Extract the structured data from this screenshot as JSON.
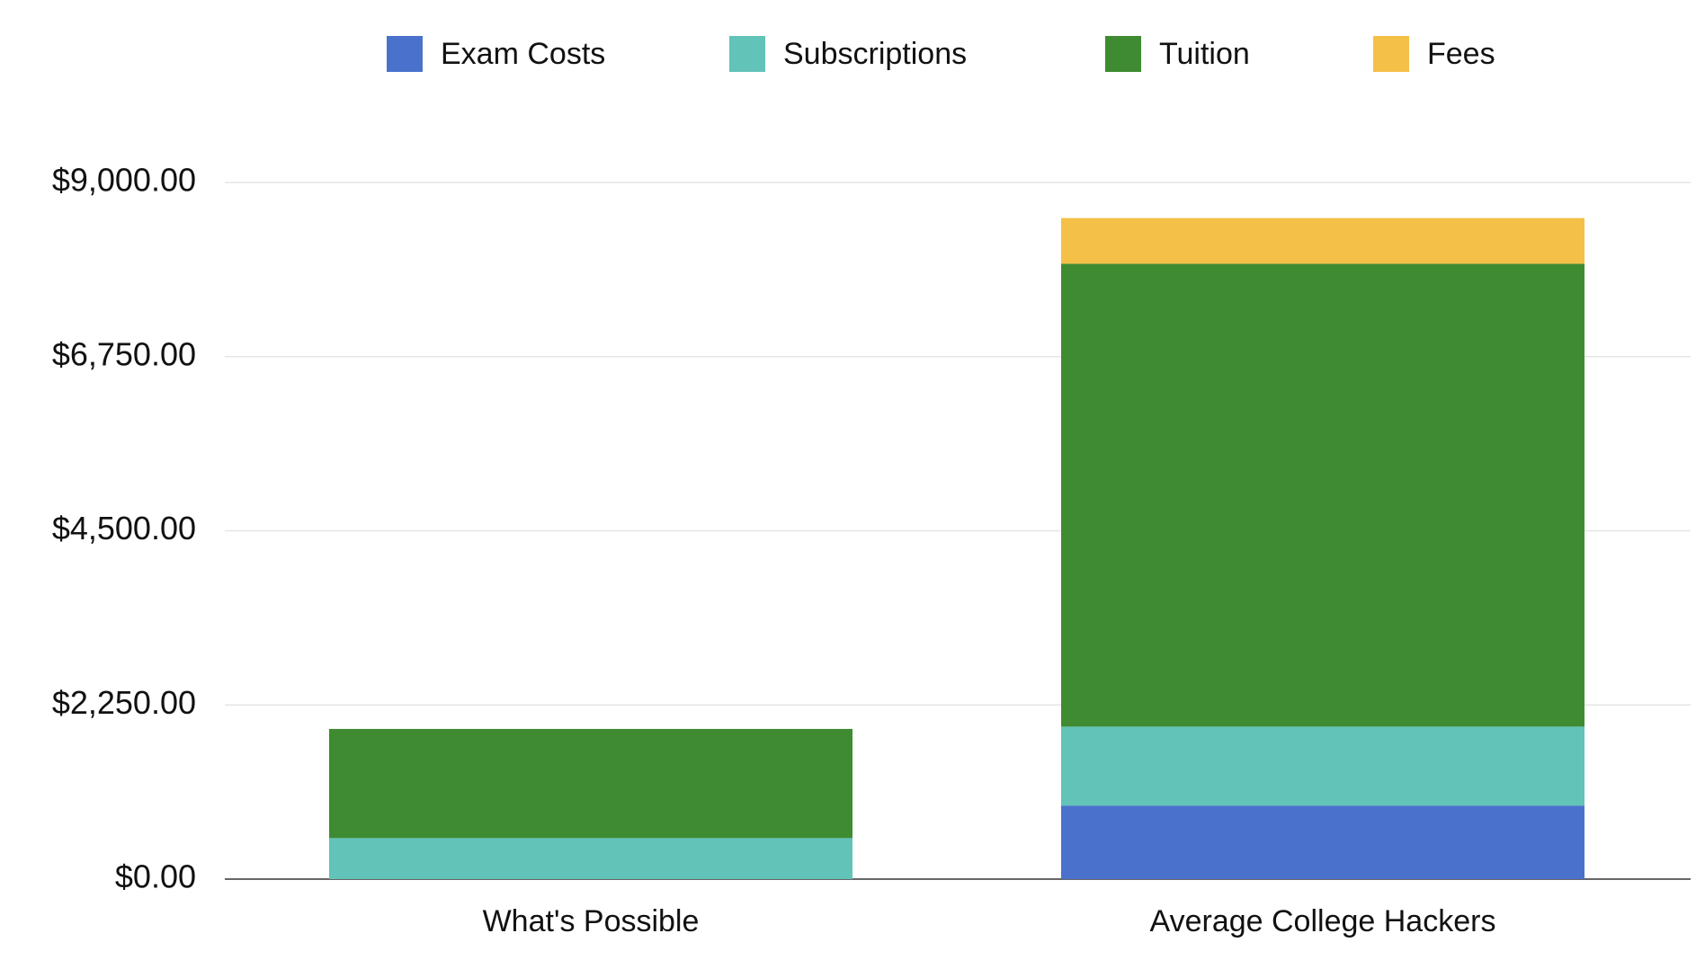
{
  "chart_data": {
    "type": "bar",
    "stacked": true,
    "title": "",
    "xlabel": "",
    "ylabel": "",
    "ylim": [
      0,
      9000
    ],
    "y_ticks": [
      0,
      2250,
      4500,
      6750,
      9000
    ],
    "y_tick_labels": [
      "$0.00",
      "$2,250.00",
      "$4,500.00",
      "$6,750.00",
      "$9,000.00"
    ],
    "categories": [
      "What's Possible",
      "Average College Hackers"
    ],
    "grid": true,
    "legend_position": "top",
    "series": [
      {
        "name": "Exam Costs",
        "color": "#4a72cc",
        "values": [
          0,
          950
        ]
      },
      {
        "name": "Subscriptions",
        "color": "#62c3b8",
        "values": [
          530,
          1020
        ]
      },
      {
        "name": "Tuition",
        "color": "#3f8b31",
        "values": [
          1410,
          5980
        ]
      },
      {
        "name": "Fees",
        "color": "#f5c048",
        "values": [
          0,
          590
        ]
      }
    ]
  }
}
